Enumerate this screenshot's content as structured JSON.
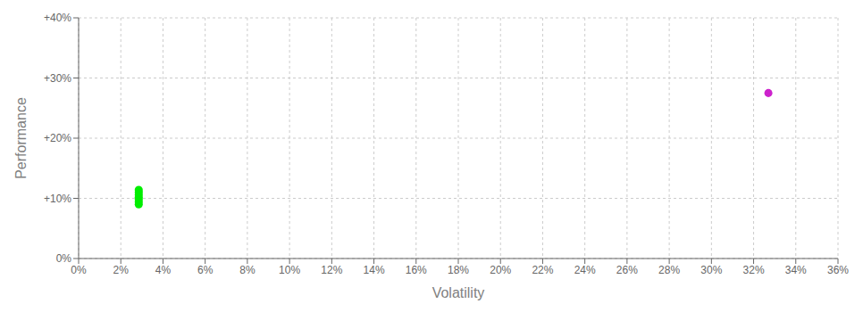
{
  "chart_data": {
    "type": "scatter",
    "xlabel": "Volatility",
    "ylabel": "Performance",
    "xlim": [
      0,
      0.36
    ],
    "ylim": [
      0,
      0.4
    ],
    "xticks": [
      {
        "value": 0.0,
        "label": "0%"
      },
      {
        "value": 0.02,
        "label": "2%"
      },
      {
        "value": 0.04,
        "label": "4%"
      },
      {
        "value": 0.06,
        "label": "6%"
      },
      {
        "value": 0.08,
        "label": "8%"
      },
      {
        "value": 0.1,
        "label": "10%"
      },
      {
        "value": 0.12,
        "label": "12%"
      },
      {
        "value": 0.14,
        "label": "14%"
      },
      {
        "value": 0.16,
        "label": "16%"
      },
      {
        "value": 0.18,
        "label": "18%"
      },
      {
        "value": 0.2,
        "label": "20%"
      },
      {
        "value": 0.22,
        "label": "22%"
      },
      {
        "value": 0.24,
        "label": "24%"
      },
      {
        "value": 0.26,
        "label": "26%"
      },
      {
        "value": 0.28,
        "label": "28%"
      },
      {
        "value": 0.3,
        "label": "30%"
      },
      {
        "value": 0.32,
        "label": "32%"
      },
      {
        "value": 0.34,
        "label": "34%"
      },
      {
        "value": 0.36,
        "label": "36%"
      }
    ],
    "yticks": [
      {
        "value": 0.0,
        "label": "0%"
      },
      {
        "value": 0.1,
        "label": "+10%"
      },
      {
        "value": 0.2,
        "label": "+20%"
      },
      {
        "value": 0.3,
        "label": "+30%"
      },
      {
        "value": 0.4,
        "label": "+40%"
      }
    ],
    "grid": true,
    "series": [
      {
        "color": "#00ee00",
        "x": [
          0.0285,
          0.0285,
          0.0285,
          0.0285,
          0.0285,
          0.0285,
          0.0285
        ],
        "values": [
          0.09,
          0.094,
          0.098,
          0.102,
          0.106,
          0.11,
          0.114
        ]
      },
      {
        "color": "#cc22cc",
        "x": [
          0.327
        ],
        "values": [
          0.275
        ]
      }
    ]
  }
}
